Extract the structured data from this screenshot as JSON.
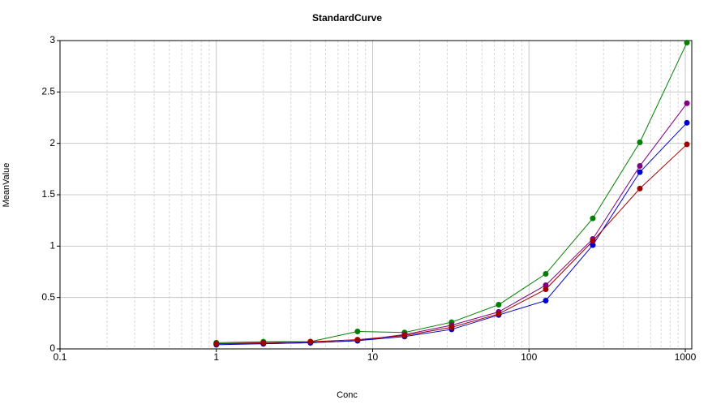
{
  "chart_data": {
    "type": "scatter",
    "title": "StandardCurve",
    "x_label": "Conc",
    "y_label": "MeanValue",
    "x": [
      1,
      2,
      4,
      8,
      16,
      32,
      64,
      128,
      256,
      512,
      1024
    ],
    "series": [
      {
        "color": "#008000",
        "values": [
          0.06,
          0.07,
          0.07,
          0.17,
          0.16,
          0.26,
          0.43,
          0.73,
          1.27,
          2.01,
          2.98
        ]
      },
      {
        "color": "#800080",
        "values": [
          0.05,
          0.05,
          0.06,
          0.08,
          0.14,
          0.23,
          0.36,
          0.62,
          1.07,
          1.78,
          2.39
        ]
      },
      {
        "color": "#0000cc",
        "values": [
          0.04,
          0.05,
          0.06,
          0.08,
          0.12,
          0.19,
          0.33,
          0.47,
          1.01,
          1.72,
          2.2
        ]
      },
      {
        "color": "#a00000",
        "values": [
          0.05,
          0.06,
          0.07,
          0.09,
          0.13,
          0.21,
          0.34,
          0.58,
          1.05,
          1.56,
          1.99
        ]
      }
    ],
    "xlog": true,
    "xlim": [
      0.1,
      1100
    ],
    "xticks": [
      0.1,
      1,
      10,
      100,
      1000
    ],
    "ylim": [
      0,
      3
    ],
    "yticks": [
      0,
      0.5,
      1,
      1.5,
      2,
      2.5,
      3
    ],
    "grid": true
  }
}
